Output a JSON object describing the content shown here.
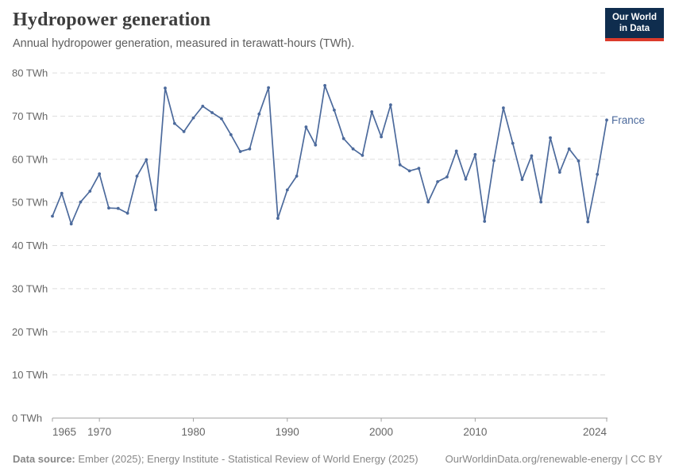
{
  "header": {
    "title": "Hydropower generation",
    "subtitle": "Annual hydropower generation, measured in terawatt-hours (TWh)."
  },
  "logo": {
    "line1": "Our World",
    "line2": "in Data"
  },
  "chart_data": {
    "type": "line",
    "title": "Hydropower generation",
    "ylabel": "TWh",
    "xlabel": "",
    "xlim": [
      1965,
      2024
    ],
    "ylim": [
      0,
      80
    ],
    "grid": "horizontal-dashed",
    "legend_position": "end-of-line",
    "y_ticks": [
      0,
      10,
      20,
      30,
      40,
      50,
      60,
      70,
      80
    ],
    "y_tick_suffix": " TWh",
    "x_ticks": [
      1965,
      1970,
      1980,
      1990,
      2000,
      2010,
      2024
    ],
    "series": [
      {
        "name": "France",
        "color": "#4c6a9c",
        "x": [
          1965,
          1966,
          1967,
          1968,
          1969,
          1970,
          1971,
          1972,
          1973,
          1974,
          1975,
          1976,
          1977,
          1978,
          1979,
          1980,
          1981,
          1982,
          1983,
          1984,
          1985,
          1986,
          1987,
          1988,
          1989,
          1990,
          1991,
          1992,
          1993,
          1994,
          1995,
          1996,
          1997,
          1998,
          1999,
          2000,
          2001,
          2002,
          2003,
          2004,
          2005,
          2006,
          2007,
          2008,
          2009,
          2010,
          2011,
          2012,
          2013,
          2014,
          2015,
          2016,
          2017,
          2018,
          2019,
          2020,
          2021,
          2022,
          2023,
          2024
        ],
        "values": [
          46.8,
          52.1,
          45.0,
          50.1,
          52.6,
          56.6,
          48.7,
          48.6,
          47.5,
          56.1,
          59.9,
          48.3,
          76.5,
          68.3,
          66.4,
          69.6,
          72.3,
          70.8,
          69.4,
          65.7,
          61.8,
          62.4,
          70.5,
          76.6,
          46.3,
          52.9,
          56.1,
          67.5,
          63.3,
          77.1,
          71.4,
          64.8,
          62.4,
          60.9,
          71.0,
          65.2,
          72.6,
          58.7,
          57.3,
          57.9,
          50.1,
          54.8,
          55.9,
          61.9,
          55.4,
          61.1,
          45.6,
          59.7,
          71.9,
          63.7,
          55.3,
          60.8,
          50.1,
          65.0,
          57.0,
          62.4,
          59.6,
          45.5,
          56.5,
          69.1
        ]
      }
    ]
  },
  "footer": {
    "source_label": "Data source:",
    "source_text": "Ember (2025); Energy Institute - Statistical Review of World Energy (2025)",
    "link_text": "OurWorldinData.org/renewable-energy | CC BY"
  },
  "colors": {
    "line": "#4c6a9c",
    "grid": "#dddddd",
    "axis": "#a1a1a1",
    "tick_text": "#666666",
    "entity_label": "#4c6a9c"
  }
}
